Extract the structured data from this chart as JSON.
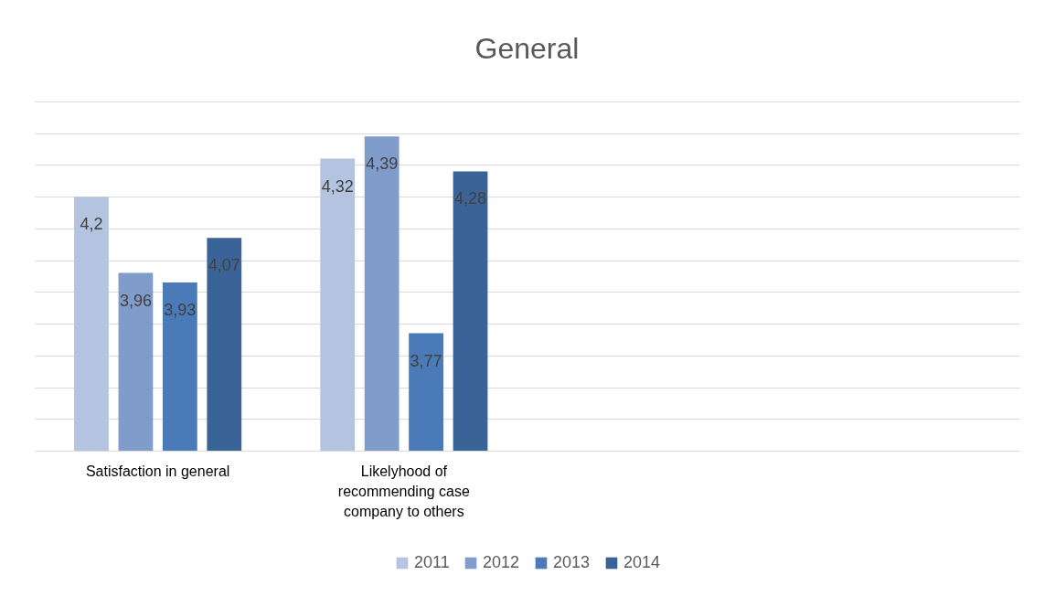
{
  "chart_data": {
    "type": "bar",
    "title": "General",
    "categories": [
      "Satisfaction in general",
      "Likelyhood of recommending case company to others",
      null,
      null
    ],
    "series": [
      {
        "name": "2011",
        "color": "#b4c3e0",
        "values": [
          4.2,
          4.32,
          null,
          null
        ],
        "value_labels": [
          "4,2",
          "4,32",
          null,
          null
        ]
      },
      {
        "name": "2012",
        "color": "#7f9ccb",
        "values": [
          3.96,
          4.39,
          null,
          null
        ],
        "value_labels": [
          "3,96",
          "4,39",
          null,
          null
        ]
      },
      {
        "name": "2013",
        "color": "#4a7ab8",
        "values": [
          3.93,
          3.77,
          null,
          null
        ],
        "value_labels": [
          "3,93",
          "3,77",
          null,
          null
        ]
      },
      {
        "name": "2014",
        "color": "#3a6497",
        "values": [
          4.07,
          4.28,
          null,
          null
        ],
        "value_labels": [
          "4,07",
          "4,28",
          null,
          null
        ]
      }
    ],
    "ylim": [
      3.4,
      4.5
    ],
    "yticks": [
      {
        "value": 3.4,
        "label": null
      },
      {
        "value": 3.5,
        "label": null
      },
      {
        "value": 3.6,
        "label": null
      },
      {
        "value": 3.7,
        "label": null
      },
      {
        "value": 3.8,
        "label": null
      },
      {
        "value": 3.9,
        "label": null
      },
      {
        "value": 4.0,
        "label": null
      },
      {
        "value": 4.1,
        "label": null
      },
      {
        "value": 4.2,
        "label": null
      },
      {
        "value": 4.3,
        "label": null
      },
      {
        "value": 4.4,
        "label": null
      },
      {
        "value": 4.5,
        "label": null
      }
    ],
    "grid": "y",
    "tick_labels": "x",
    "legend": "bottom"
  }
}
